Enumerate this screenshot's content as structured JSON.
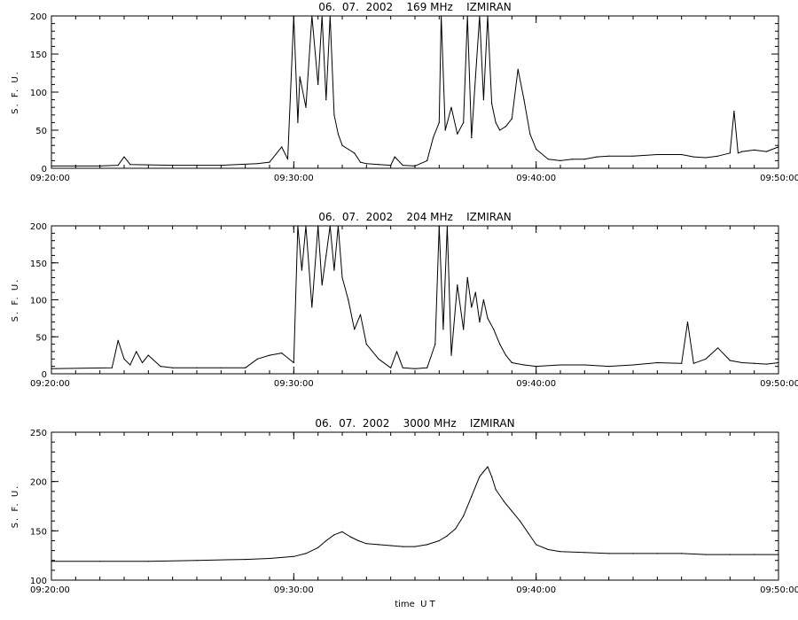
{
  "chart_data": [
    {
      "type": "line",
      "title": "06.  07.  2002    169 MHz    IZMIRAN",
      "ylabel": "S. F. U.",
      "xlabel": "",
      "xlim": [
        "09:20:00",
        "09:50:00"
      ],
      "ylim": [
        0,
        200
      ],
      "xticks": [
        "09:20:00",
        "09:30:00",
        "09:40:00",
        "09:50:00"
      ],
      "yticks": [
        0,
        50,
        100,
        150,
        200
      ],
      "grid": false,
      "series": [
        {
          "x": [
            "09:20:00",
            "09:22:00",
            "09:22:45",
            "09:23:00",
            "09:23:15",
            "09:25:00",
            "09:27:00",
            "09:28:30",
            "09:29:00",
            "09:29:30",
            "09:29:45",
            "09:30:00",
            "09:30:10",
            "09:30:15",
            "09:30:30",
            "09:30:45",
            "09:31:00",
            "09:31:10",
            "09:31:20",
            "09:31:30",
            "09:31:40",
            "09:31:50",
            "09:32:00",
            "09:32:15",
            "09:32:30",
            "09:32:45",
            "09:33:00",
            "09:33:30",
            "09:34:00",
            "09:34:10",
            "09:34:30",
            "09:35:00",
            "09:35:30",
            "09:35:45",
            "09:36:00",
            "09:36:05",
            "09:36:15",
            "09:36:30",
            "09:36:45",
            "09:37:00",
            "09:37:10",
            "09:37:20",
            "09:37:30",
            "09:37:40",
            "09:37:50",
            "09:38:00",
            "09:38:10",
            "09:38:20",
            "09:38:30",
            "09:38:45",
            "09:39:00",
            "09:39:15",
            "09:39:30",
            "09:39:45",
            "09:40:00",
            "09:40:30",
            "09:41:00",
            "09:41:30",
            "09:42:00",
            "09:42:30",
            "09:43:00",
            "09:44:00",
            "09:45:00",
            "09:46:00",
            "09:46:30",
            "09:47:00",
            "09:47:30",
            "09:48:00",
            "09:48:10",
            "09:48:20",
            "09:48:30",
            "09:49:00",
            "09:49:30",
            "09:50:00"
          ],
          "y": [
            3,
            3,
            4,
            15,
            5,
            4,
            4,
            6,
            8,
            28,
            12,
            200,
            60,
            120,
            80,
            200,
            110,
            200,
            90,
            200,
            70,
            45,
            30,
            25,
            20,
            8,
            6,
            5,
            4,
            15,
            4,
            3,
            10,
            40,
            60,
            200,
            50,
            80,
            45,
            60,
            200,
            40,
            120,
            200,
            90,
            200,
            85,
            60,
            50,
            55,
            65,
            130,
            90,
            45,
            25,
            12,
            10,
            12,
            12,
            15,
            16,
            16,
            18,
            18,
            15,
            14,
            16,
            20,
            75,
            20,
            22,
            24,
            22,
            28
          ]
        }
      ]
    },
    {
      "type": "line",
      "title": "06.  07.  2002    204 MHz    IZMIRAN",
      "ylabel": "S. F. U.",
      "xlabel": "",
      "xlim": [
        "09:20:00",
        "09:50:00"
      ],
      "ylim": [
        0,
        200
      ],
      "xticks": [
        "09:20:00",
        "09:30:00",
        "09:40:00",
        "09:50:00"
      ],
      "yticks": [
        0,
        50,
        100,
        150,
        200
      ],
      "grid": false,
      "series": [
        {
          "x": [
            "09:20:00",
            "09:22:30",
            "09:22:45",
            "09:23:00",
            "09:23:15",
            "09:23:30",
            "09:23:45",
            "09:24:00",
            "09:24:30",
            "09:25:00",
            "09:26:00",
            "09:27:00",
            "09:28:00",
            "09:28:30",
            "09:29:00",
            "09:29:30",
            "09:30:00",
            "09:30:10",
            "09:30:20",
            "09:30:30",
            "09:30:45",
            "09:31:00",
            "09:31:10",
            "09:31:20",
            "09:31:30",
            "09:31:40",
            "09:31:50",
            "09:32:00",
            "09:32:15",
            "09:32:30",
            "09:32:45",
            "09:33:00",
            "09:33:30",
            "09:34:00",
            "09:34:15",
            "09:34:30",
            "09:35:00",
            "09:35:30",
            "09:35:50",
            "09:36:00",
            "09:36:10",
            "09:36:20",
            "09:36:30",
            "09:36:45",
            "09:37:00",
            "09:37:10",
            "09:37:20",
            "09:37:30",
            "09:37:40",
            "09:37:50",
            "09:38:00",
            "09:38:15",
            "09:38:30",
            "09:38:45",
            "09:39:00",
            "09:39:30",
            "09:40:00",
            "09:41:00",
            "09:42:00",
            "09:43:00",
            "09:44:00",
            "09:45:00",
            "09:46:00",
            "09:46:15",
            "09:46:30",
            "09:47:00",
            "09:47:30",
            "09:48:00",
            "09:48:30",
            "09:49:00",
            "09:49:30",
            "09:50:00"
          ],
          "y": [
            7,
            8,
            45,
            20,
            12,
            30,
            15,
            25,
            10,
            8,
            8,
            8,
            8,
            20,
            25,
            28,
            15,
            200,
            140,
            200,
            90,
            200,
            120,
            160,
            200,
            140,
            200,
            130,
            100,
            60,
            80,
            40,
            20,
            8,
            30,
            8,
            7,
            8,
            40,
            200,
            60,
            200,
            25,
            120,
            60,
            130,
            90,
            110,
            70,
            100,
            75,
            60,
            40,
            25,
            15,
            12,
            10,
            12,
            12,
            10,
            12,
            15,
            14,
            70,
            14,
            20,
            35,
            18,
            15,
            14,
            13,
            15
          ]
        }
      ]
    },
    {
      "type": "line",
      "title": "06.  07.  2002    3000 MHz    IZMIRAN",
      "ylabel": "S. F. U.",
      "xlabel": "time  U T",
      "xlim": [
        "09:20:00",
        "09:50:00"
      ],
      "ylim": [
        100,
        250
      ],
      "xticks": [
        "09:20:00",
        "09:30:00",
        "09:40:00",
        "09:50:00"
      ],
      "yticks": [
        100,
        150,
        200,
        250
      ],
      "grid": false,
      "series": [
        {
          "x": [
            "09:20:00",
            "09:22:00",
            "09:24:00",
            "09:26:00",
            "09:28:00",
            "09:29:00",
            "09:30:00",
            "09:30:30",
            "09:31:00",
            "09:31:20",
            "09:31:40",
            "09:32:00",
            "09:32:20",
            "09:32:40",
            "09:33:00",
            "09:33:30",
            "09:34:00",
            "09:34:30",
            "09:35:00",
            "09:35:30",
            "09:36:00",
            "09:36:20",
            "09:36:40",
            "09:37:00",
            "09:37:20",
            "09:37:40",
            "09:37:50",
            "09:38:00",
            "09:38:10",
            "09:38:20",
            "09:38:40",
            "09:39:00",
            "09:39:20",
            "09:39:40",
            "09:40:00",
            "09:40:30",
            "09:41:00",
            "09:42:00",
            "09:43:00",
            "09:44:00",
            "09:45:00",
            "09:46:00",
            "09:47:00",
            "09:48:00",
            "09:49:00",
            "09:50:00"
          ],
          "y": [
            119,
            119,
            119,
            120,
            121,
            122,
            124,
            127,
            133,
            140,
            146,
            149,
            144,
            140,
            137,
            136,
            135,
            134,
            134,
            136,
            140,
            145,
            152,
            165,
            185,
            205,
            210,
            215,
            205,
            192,
            180,
            170,
            160,
            148,
            136,
            131,
            129,
            128,
            127,
            127,
            127,
            127,
            126,
            126,
            126,
            126
          ]
        }
      ]
    }
  ]
}
